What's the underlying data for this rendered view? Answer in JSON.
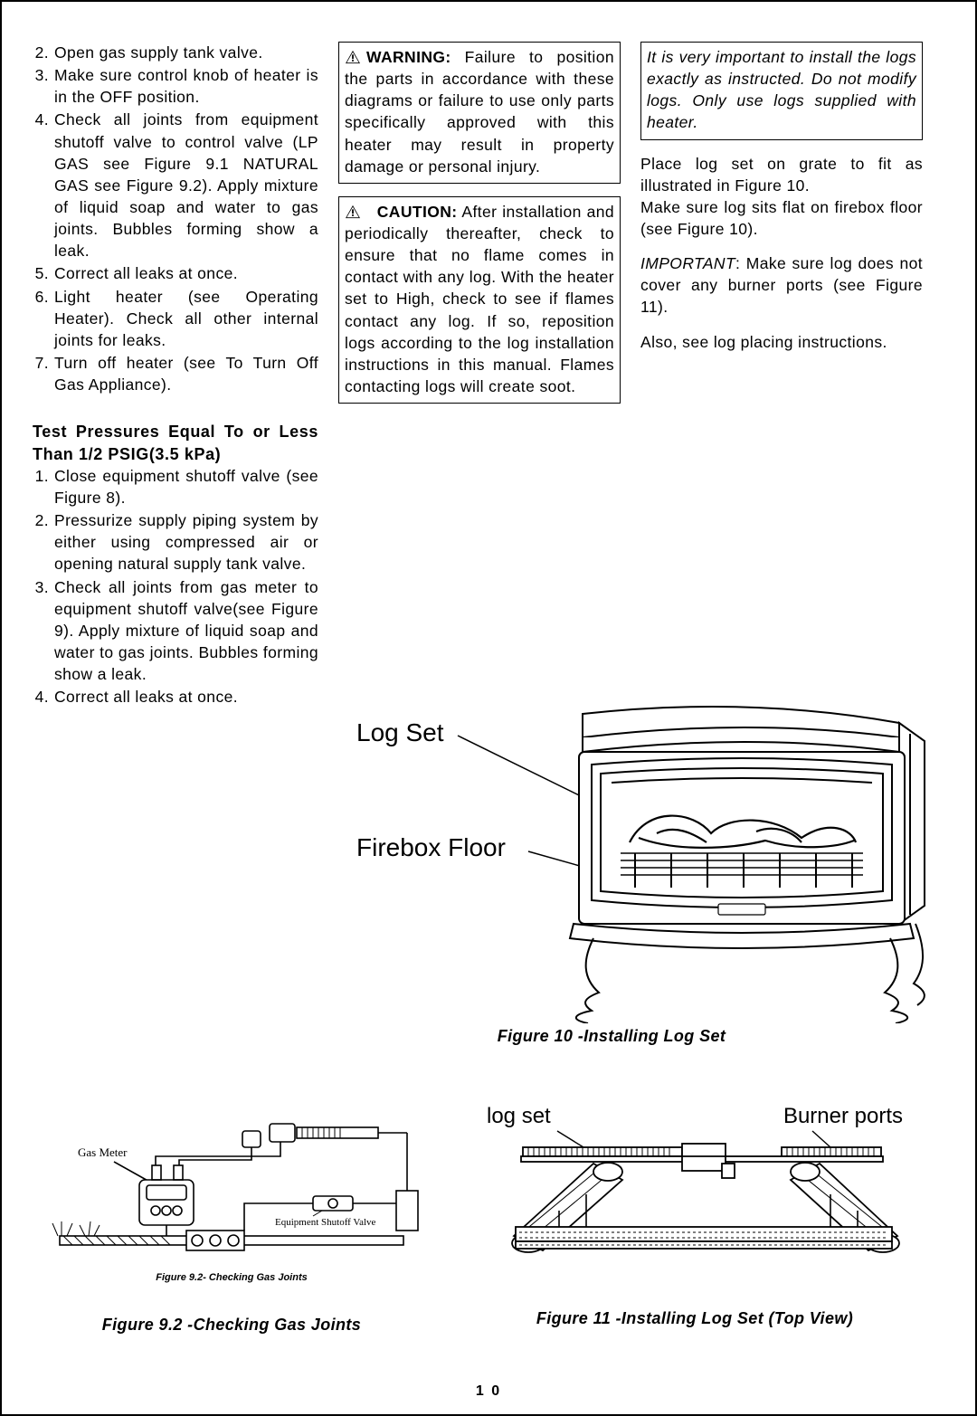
{
  "page_number": "1 0",
  "list1": [
    {
      "n": "2.",
      "t": "Open  gas supply tank valve."
    },
    {
      "n": "3.",
      "t": "Make sure control knob of heater is in the OFF  position."
    },
    {
      "n": "4.",
      "t": "Check all joints from equipment shutoff valve to control valve (LP GAS see Figure 9.1 NATURAL GAS see Figure 9.2).  Apply mixture of liquid soap and  water to  gas  joints.  Bubbles forming show  a  leak."
    },
    {
      "n": "5.",
      "t": "Correct all leaks at once."
    },
    {
      "n": "6.",
      "t": "Light heater (see  Operating Heater). Check all other internal joints  for  leaks."
    },
    {
      "n": "7.",
      "t": "Turn  off  heater (see To Turn Off Gas  Appliance)."
    }
  ],
  "heading_pressure": "Test  Pressures  Equal  To  or Less  Than  1/2  PSIG(3.5 kPa)",
  "list2": [
    {
      "n": "1.",
      "t": " Close  equipment  shutoff  valve (see Figure  8)."
    },
    {
      "n": "2.",
      "t": " Pressurize  supply  piping  system by  either  using  compressed  air  or opening  natural  supply  tank valve."
    },
    {
      "n": "3.",
      "t": "Check  all  joints  from  gas  meter  to equipment  shutoff  valve(see Figure  9). Apply  mixture  of  liquid soap  and  water  to  gas  joints. Bubbles  forming  show  a  leak."
    },
    {
      "n": "4.",
      "t": "Correct  all  leaks  at  once."
    }
  ],
  "warning": {
    "label": "WARNING:",
    "text": "  Failure  to  position the  parts  in  accordance  with  these diagrams  or  failure  to  use  only  parts specifically  approved  with  this  heater may  result  in  property  damage  or personal  injury."
  },
  "caution": {
    "label": "CAUTION:",
    "text": "   After  installation and  periodically  thereafter,  check  to ensure  that  no  flame  comes  in contact  with any log. With the heater set  to  High, check  to  see  if  flames contact  any  log. If  so, reposition  logs according  to the log  installation instructions  in  this  manual. Flames contacting  logs  will  create  soot."
  },
  "install_box": "It is very important to install the logs exactly as instructed. Do not modify logs. Only use logs supplied with heater.",
  "right_p1": "Place  log  set  on  grate  to fit  as illustrated  in  Figure  10.",
  "right_p1b": "Make  sure  log  sits  flat  on  firebox floor (see Figure 10).",
  "right_p2_label": "IMPORTANT",
  "right_p2": ": Make  sure  log  does not cover any burner ports (see Figure 11).",
  "right_p3": "Also,  see  log  placing  instructions.",
  "fig10": {
    "label_logset": "Log Set",
    "label_floor": "Firebox Floor",
    "caption": "Figure  10 -Installing   Log  Set"
  },
  "fig92": {
    "gas_meter": "Gas Meter",
    "shutoff": "Equipment Shutoff Valve",
    "sub": "Figure 9.2- Checking Gas Joints",
    "caption": "Figure  9.2 -Checking Gas Joints"
  },
  "fig11": {
    "label_logset": "log set",
    "label_ports": "Burner ports",
    "caption": "Figure  11 -Installing  Log  Set (Top  View)"
  },
  "colors": {
    "stroke": "#000000",
    "fill_light": "#ffffff",
    "fill_hatch": "#888888"
  }
}
